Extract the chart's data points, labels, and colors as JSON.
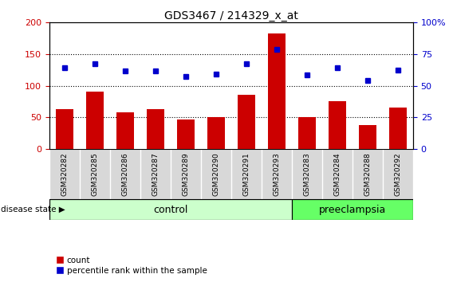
{
  "title": "GDS3467 / 214329_x_at",
  "samples": [
    "GSM320282",
    "GSM320285",
    "GSM320286",
    "GSM320287",
    "GSM320289",
    "GSM320290",
    "GSM320291",
    "GSM320293",
    "GSM320283",
    "GSM320284",
    "GSM320288",
    "GSM320292"
  ],
  "counts": [
    63,
    90,
    58,
    63,
    46,
    50,
    85,
    183,
    50,
    75,
    37,
    65
  ],
  "percentiles": [
    128,
    135,
    123,
    124,
    114,
    118,
    135,
    158,
    117,
    128,
    108,
    125
  ],
  "groups": [
    "control",
    "control",
    "control",
    "control",
    "control",
    "control",
    "control",
    "control",
    "preeclampsia",
    "preeclampsia",
    "preeclampsia",
    "preeclampsia"
  ],
  "control_color": "#ccffcc",
  "preeclampsia_color": "#66ff66",
  "bar_color": "#cc0000",
  "dot_color": "#0000cc",
  "ticklabel_bg": "#d8d8d8",
  "ticklabel_edge": "#aaaaaa",
  "bar_width": 0.6,
  "ylim_left": [
    0,
    200
  ],
  "ylim_right": [
    0,
    100
  ],
  "yticks_left": [
    0,
    50,
    100,
    150,
    200
  ],
  "yticks_right": [
    0,
    25,
    50,
    75,
    100
  ],
  "ytick_labels_right": [
    "0",
    "25",
    "50",
    "75",
    "100%"
  ],
  "dotted_lines": [
    50,
    100,
    150
  ],
  "legend_count": "count",
  "legend_percentile": "percentile rank within the sample",
  "disease_label": "disease state",
  "control_label": "control",
  "preeclampsia_label": "preeclampsia"
}
